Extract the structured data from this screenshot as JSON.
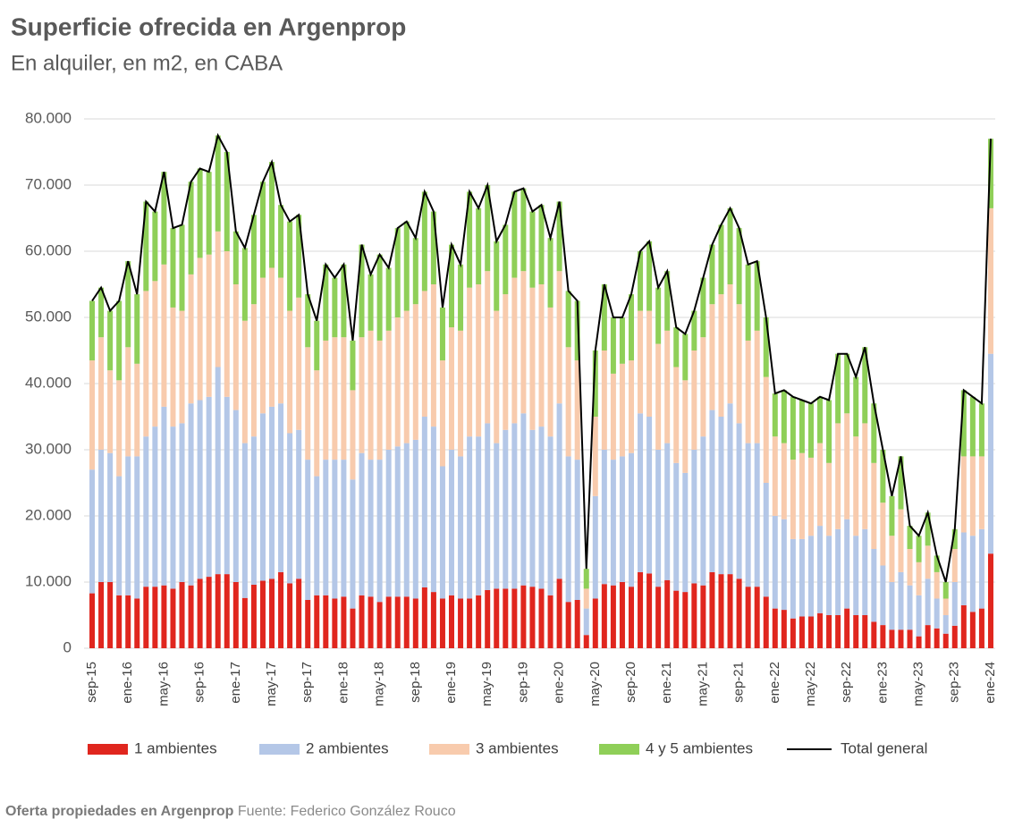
{
  "chart_data": {
    "type": "bar",
    "stacked": true,
    "title": "Superficie ofrecida en Argenprop",
    "subtitle": "En alquiler, en m2, en CABA",
    "categories": [
      "sep-15",
      null,
      null,
      null,
      "ene-16",
      null,
      null,
      null,
      "may-16",
      null,
      null,
      null,
      "sep-16",
      null,
      null,
      null,
      "ene-17",
      null,
      null,
      null,
      "may-17",
      null,
      null,
      null,
      "sep-17",
      null,
      null,
      null,
      "ene-18",
      null,
      null,
      null,
      "may-18",
      null,
      null,
      null,
      "sep-18",
      null,
      null,
      null,
      "ene-19",
      null,
      null,
      null,
      "may-19",
      null,
      null,
      null,
      "sep-19",
      null,
      null,
      null,
      "ene-20",
      null,
      null,
      null,
      "may-20",
      null,
      null,
      null,
      "sep-20",
      null,
      null,
      null,
      "ene-21",
      null,
      null,
      null,
      "may-21",
      null,
      null,
      null,
      "sep-21",
      null,
      null,
      null,
      "ene-22",
      null,
      null,
      null,
      "may-22",
      null,
      null,
      null,
      "sep-22",
      null,
      null,
      null,
      "ene-23",
      null,
      null,
      null,
      "may-23",
      null,
      null,
      null,
      "sep-23",
      null,
      null,
      null,
      "ene-24"
    ],
    "series": [
      {
        "name": "1 ambientes",
        "color": "#e0261e",
        "values": [
          8300,
          10000,
          10000,
          8000,
          8000,
          7500,
          9300,
          9300,
          9500,
          9000,
          10000,
          9500,
          10500,
          10800,
          11200,
          11200,
          10000,
          7600,
          9600,
          10200,
          10500,
          11500,
          9800,
          10500,
          7300,
          8000,
          8000,
          7500,
          7800,
          6000,
          8000,
          7800,
          7000,
          7800,
          7800,
          7800,
          7500,
          9200,
          8500,
          7500,
          8000,
          7500,
          7500,
          8000,
          8800,
          9000,
          9000,
          9000,
          9500,
          9300,
          9000,
          8000,
          10500,
          7000,
          7300,
          2000,
          7500,
          9700,
          9500,
          10000,
          9300,
          11500,
          11300,
          9300,
          10300,
          8700,
          8500,
          9800,
          9500,
          11500,
          11200,
          11200,
          10500,
          9300,
          9300,
          7800,
          6000,
          5800,
          4500,
          4800,
          4800,
          5300,
          5000,
          5000,
          6000,
          5000,
          5000,
          4000,
          3500,
          2800,
          2800,
          2800,
          1800,
          3500,
          3000,
          2200,
          3400,
          6500,
          5500,
          6000,
          14300
        ]
      },
      {
        "name": "2 ambientes",
        "color": "#b4c7e7",
        "values": [
          18700,
          20000,
          19500,
          18000,
          21000,
          21500,
          22700,
          24200,
          27000,
          24500,
          24000,
          27500,
          27000,
          27200,
          31300,
          26800,
          26000,
          23400,
          22400,
          25300,
          26000,
          25500,
          22700,
          22500,
          21200,
          18000,
          20500,
          21000,
          20700,
          19500,
          21500,
          20700,
          21500,
          22200,
          22700,
          23200,
          24000,
          25800,
          25000,
          20000,
          22000,
          21500,
          24500,
          24000,
          25200,
          22000,
          24000,
          25000,
          26000,
          23700,
          24500,
          24000,
          26500,
          22000,
          21200,
          4000,
          15500,
          20300,
          19000,
          19000,
          20200,
          24000,
          23700,
          20700,
          20700,
          19300,
          18000,
          20200,
          22500,
          24500,
          23800,
          25800,
          23500,
          21700,
          21700,
          17200,
          14000,
          13700,
          12000,
          11700,
          12200,
          13200,
          12000,
          13000,
          13500,
          12000,
          13000,
          11000,
          9000,
          7200,
          8700,
          6700,
          6200,
          7000,
          4500,
          2800,
          6600,
          11000,
          11500,
          12000,
          30200
        ]
      },
      {
        "name": "3 ambientes",
        "color": "#f8cbad",
        "values": [
          16500,
          17000,
          12500,
          14500,
          16500,
          14000,
          22000,
          22000,
          21500,
          18000,
          17000,
          19500,
          21500,
          21500,
          20500,
          22000,
          19000,
          18500,
          20000,
          20500,
          21000,
          19000,
          18500,
          20000,
          17000,
          16000,
          18000,
          18500,
          18500,
          13500,
          17500,
          19500,
          18000,
          18000,
          19500,
          20000,
          20500,
          19000,
          21500,
          16000,
          18500,
          19000,
          22500,
          23000,
          23000,
          20000,
          20500,
          22000,
          21500,
          21500,
          21500,
          19500,
          20000,
          16500,
          15000,
          3000,
          12000,
          15000,
          13000,
          14000,
          14000,
          15500,
          16000,
          16000,
          17000,
          14500,
          14000,
          15000,
          15000,
          16000,
          18500,
          18000,
          18000,
          15500,
          17000,
          16000,
          12000,
          11500,
          12000,
          13000,
          11800,
          12500,
          11000,
          16000,
          16000,
          15000,
          16000,
          13000,
          9500,
          7000,
          9500,
          5500,
          5000,
          5000,
          4000,
          2500,
          5000,
          11500,
          12000,
          11000,
          22000
        ]
      },
      {
        "name": "4 y 5 ambientes",
        "color": "#8fcf58",
        "values": [
          9000,
          7500,
          9000,
          12000,
          13000,
          10500,
          13500,
          10500,
          14000,
          12000,
          13000,
          14000,
          13500,
          12500,
          14500,
          15000,
          8000,
          11000,
          13500,
          14500,
          16000,
          11000,
          13500,
          12500,
          8000,
          7500,
          11500,
          9000,
          11000,
          7500,
          14000,
          8500,
          13000,
          9500,
          13500,
          13500,
          10000,
          15000,
          11000,
          8000,
          12500,
          10000,
          14500,
          11500,
          13000,
          10500,
          10500,
          13000,
          12500,
          11500,
          12000,
          10500,
          10500,
          8500,
          9000,
          3000,
          10000,
          10000,
          8500,
          7000,
          10000,
          9000,
          10500,
          8500,
          9000,
          6000,
          7000,
          6000,
          9000,
          9000,
          10500,
          11500,
          11500,
          11500,
          10500,
          9000,
          6500,
          8000,
          9500,
          8000,
          8200,
          7000,
          9500,
          10500,
          9000,
          9000,
          11500,
          9000,
          8000,
          6000,
          8000,
          3500,
          4000,
          5000,
          2500,
          2500,
          3000,
          10000,
          9000,
          8000,
          10500
        ]
      },
      {
        "name": "Total general",
        "color": "#000000",
        "type": "line",
        "values": [
          52500,
          54500,
          51000,
          52500,
          58500,
          53500,
          67500,
          66000,
          72000,
          63500,
          64000,
          70500,
          72500,
          72000,
          77500,
          75000,
          63000,
          60500,
          65500,
          70500,
          73500,
          67000,
          64500,
          65500,
          53500,
          49500,
          58000,
          56000,
          58000,
          46500,
          61000,
          56500,
          59500,
          57500,
          63500,
          64500,
          62000,
          69000,
          66000,
          51500,
          61000,
          58000,
          69000,
          66500,
          70000,
          61500,
          64000,
          69000,
          69500,
          66000,
          67000,
          62000,
          67500,
          54000,
          52500,
          12000,
          45000,
          55000,
          50000,
          50000,
          53500,
          60000,
          61500,
          54500,
          57000,
          48500,
          47500,
          51000,
          56000,
          61000,
          64000,
          66500,
          63500,
          58000,
          58500,
          50000,
          38500,
          39000,
          38000,
          37500,
          37000,
          38000,
          37500,
          44500,
          44500,
          41000,
          45500,
          37000,
          30000,
          23000,
          29000,
          18500,
          17000,
          20500,
          14000,
          10000,
          18000,
          39000,
          38000,
          37000,
          77000
        ]
      }
    ],
    "ylim": [
      0,
      80000
    ],
    "yticks": [
      0,
      {
        "value": 10000,
        "label": "10.000"
      },
      {
        "value": 20000,
        "label": "20.000"
      },
      {
        "value": 30000,
        "label": "30.000"
      },
      {
        "value": 40000,
        "label": "40.000"
      },
      {
        "value": 50000,
        "label": "50.000"
      },
      {
        "value": 60000,
        "label": "60.000"
      },
      {
        "value": 70000,
        "label": "70.000"
      },
      {
        "value": 80000,
        "label": "80.000"
      }
    ],
    "grid": true,
    "legend": "bottom"
  },
  "caption": {
    "source_title": "Oferta propiedades en Argenprop",
    "source": "Fuente: Federico González Rouco"
  }
}
